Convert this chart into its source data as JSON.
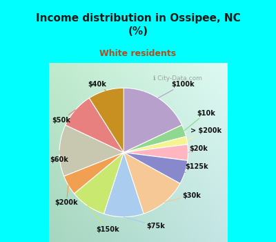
{
  "title": "Income distribution in Ossipee, NC\n(%)",
  "subtitle": "White residents",
  "labels": [
    "$100k",
    "$10k",
    "> $200k",
    "$20k",
    "$125k",
    "$30k",
    "$75k",
    "$150k",
    "$200k",
    "$60k",
    "$50k",
    "$40k"
  ],
  "sizes": [
    18,
    3,
    2,
    4,
    6,
    12,
    10,
    9,
    5,
    13,
    9,
    9
  ],
  "colors": [
    "#b8a0cc",
    "#90d890",
    "#f5f590",
    "#ffb6c1",
    "#8888cc",
    "#f5c896",
    "#aaccee",
    "#c8e870",
    "#f0a050",
    "#c8c8b0",
    "#e88080",
    "#c89020"
  ],
  "background_color": "#00ffff",
  "title_color": "#1a1a1a",
  "subtitle_color": "#b05020",
  "watermark": "City-Data.com"
}
